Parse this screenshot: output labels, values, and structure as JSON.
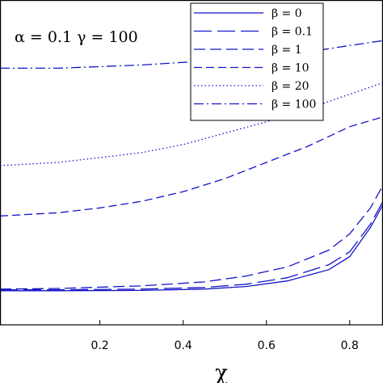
{
  "chart_data": {
    "type": "line",
    "title": "",
    "xlabel": "χ",
    "ylabel": "",
    "xlim": [
      -0.04,
      0.88
    ],
    "ylim": [
      0,
      1
    ],
    "x_ticks": [
      0.2,
      0.4,
      0.6,
      0.8
    ],
    "x_tick_labels": [
      "0.2",
      "0.4",
      "0.6",
      "0.8"
    ],
    "grid": false,
    "legend_position": "top-right",
    "annotation": "α = 0.1   γ = 100",
    "line_color": "#1414c8",
    "series": [
      {
        "name": "β = 0",
        "dash": "solid",
        "x": [
          -0.04,
          0.1,
          0.3,
          0.45,
          0.55,
          0.65,
          0.75,
          0.8,
          0.85,
          0.88
        ],
        "y": [
          0.105,
          0.105,
          0.106,
          0.11,
          0.118,
          0.135,
          0.17,
          0.21,
          0.3,
          0.37
        ]
      },
      {
        "name": "β = 0.1",
        "dash": "longdash",
        "x": [
          -0.04,
          0.1,
          0.3,
          0.45,
          0.55,
          0.65,
          0.75,
          0.8,
          0.85,
          0.88
        ],
        "y": [
          0.108,
          0.108,
          0.11,
          0.115,
          0.125,
          0.145,
          0.185,
          0.225,
          0.31,
          0.38
        ]
      },
      {
        "name": "β = 1",
        "dash": "dash",
        "x": [
          -0.04,
          0.1,
          0.3,
          0.45,
          0.55,
          0.65,
          0.75,
          0.8,
          0.85,
          0.88
        ],
        "y": [
          0.11,
          0.112,
          0.12,
          0.132,
          0.15,
          0.178,
          0.23,
          0.28,
          0.36,
          0.43
        ]
      },
      {
        "name": "β = 10",
        "dash": "medium",
        "x": [
          -0.04,
          0.1,
          0.2,
          0.3,
          0.4,
          0.5,
          0.6,
          0.7,
          0.8,
          0.88
        ],
        "y": [
          0.335,
          0.345,
          0.36,
          0.38,
          0.41,
          0.45,
          0.5,
          0.55,
          0.61,
          0.64
        ]
      },
      {
        "name": "β = 20",
        "dash": "dotted",
        "x": [
          -0.04,
          0.1,
          0.2,
          0.3,
          0.4,
          0.5,
          0.6,
          0.7,
          0.8,
          0.88
        ],
        "y": [
          0.49,
          0.5,
          0.515,
          0.53,
          0.555,
          0.59,
          0.625,
          0.665,
          0.71,
          0.745
        ]
      },
      {
        "name": "β = 100",
        "dash": "dashdot",
        "x": [
          -0.04,
          0.1,
          0.2,
          0.3,
          0.4,
          0.5,
          0.6,
          0.7,
          0.8,
          0.88
        ],
        "y": [
          0.79,
          0.79,
          0.795,
          0.8,
          0.808,
          0.815,
          0.825,
          0.84,
          0.86,
          0.875
        ]
      }
    ]
  }
}
